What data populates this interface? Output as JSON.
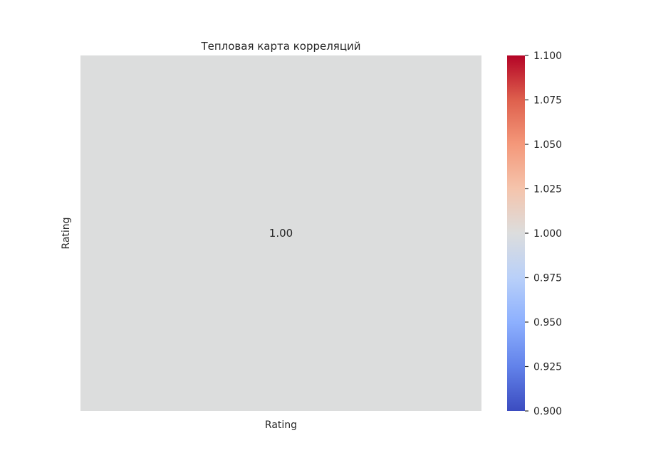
{
  "chart_data": {
    "type": "heatmap",
    "title": "Тепловая карта корреляций",
    "x_categories": [
      "Rating"
    ],
    "y_categories": [
      "Rating"
    ],
    "values": [
      [
        1.0
      ]
    ],
    "annotations": [
      [
        "1.00"
      ]
    ],
    "colormap": "coolwarm",
    "cell_color": "#dcdddd",
    "colorbar": {
      "min": 0.9,
      "max": 1.1,
      "ticks": [
        0.9,
        0.925,
        0.95,
        0.975,
        1.0,
        1.025,
        1.05,
        1.075,
        1.1
      ],
      "tick_labels": [
        "0.900",
        "0.925",
        "0.950",
        "0.975",
        "1.000",
        "1.025",
        "1.050",
        "1.075",
        "1.100"
      ],
      "gradient_stops": [
        "#3b4cc0",
        "#6282ea",
        "#8db0fe",
        "#b9d0f9",
        "#dcdddd",
        "#f5c4ac",
        "#f4987a",
        "#de604d",
        "#b40426"
      ]
    }
  }
}
